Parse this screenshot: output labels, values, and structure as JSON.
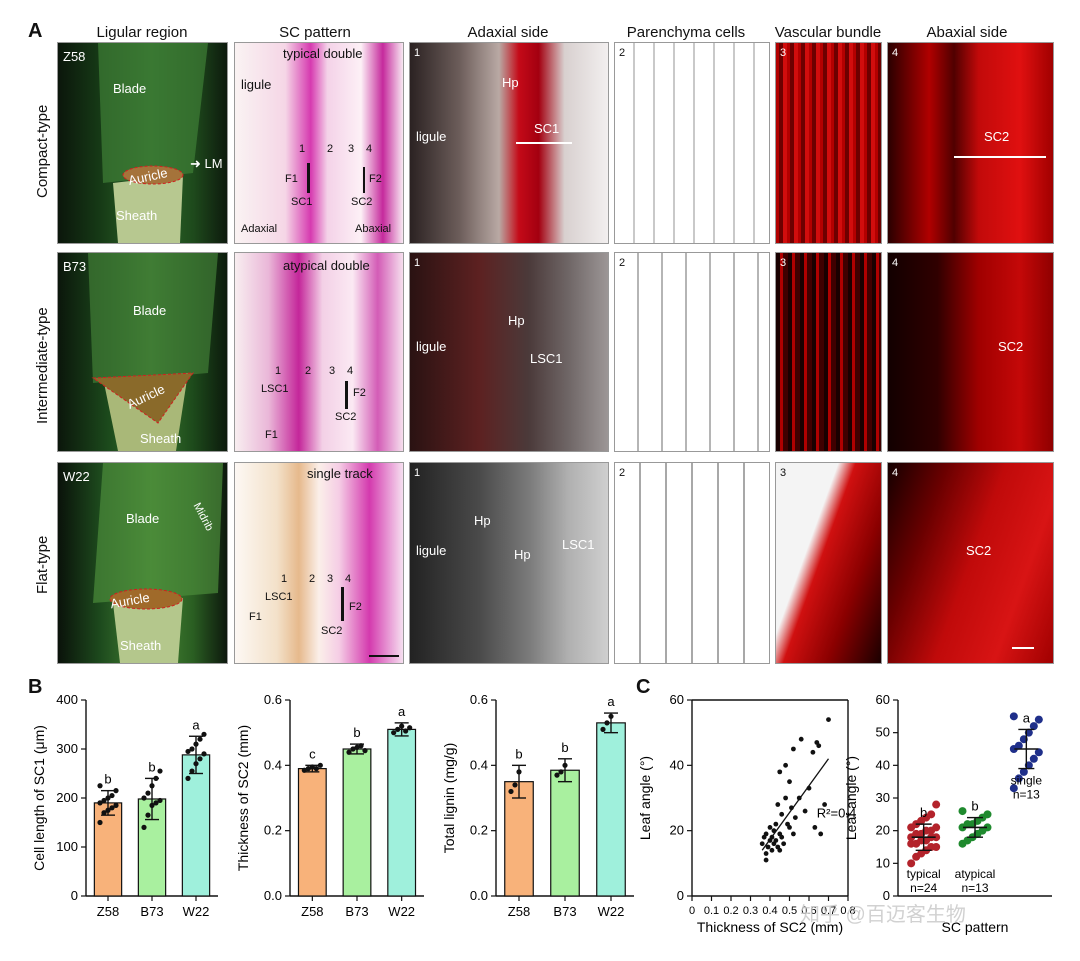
{
  "panels": {
    "A": "A",
    "B": "B",
    "C": "C"
  },
  "columns": [
    "Ligular region",
    "SC pattern",
    "Adaxial side",
    "Parenchyma cells",
    "Vascular bundle",
    "Abaxial side"
  ],
  "rows": [
    "Compact-type",
    "Intermediate-type",
    "Flat-type"
  ],
  "row1": {
    "line": "Z58",
    "blade": "Blade",
    "auricle": "Auricle",
    "lm": "LM",
    "sheath": "Sheath",
    "pattern": "typical double",
    "ligule": "ligule",
    "n1": "1",
    "n2": "2",
    "n3": "3",
    "n4": "4",
    "f1": "F1",
    "f2": "F2",
    "sc1": "SC1",
    "sc2": "SC2",
    "adaxial": "Adaxial",
    "abaxial": "Abaxial",
    "ad_hp": "Hp",
    "ad_ligule": "ligule",
    "ad_sc1": "SC1",
    "ad_n": "1",
    "par_n": "2",
    "vb_n": "3",
    "ab_n": "4",
    "ab_sc2": "SC2"
  },
  "row2": {
    "line": "B73",
    "blade": "Blade",
    "auricle": "Auricle",
    "sheath": "Sheath",
    "pattern": "atypical double",
    "n1": "1",
    "n2": "2",
    "n3": "3",
    "n4": "4",
    "lsc1": "LSC1",
    "f1": "F1",
    "f2": "F2",
    "sc2": "SC2",
    "ad_hp": "Hp",
    "ad_ligule": "ligule",
    "ad_lsc1": "LSC1",
    "ad_n": "1",
    "par_n": "2",
    "vb_n": "3",
    "ab_n": "4",
    "ab_sc2": "SC2"
  },
  "row3": {
    "line": "W22",
    "blade": "Blade",
    "midrib": "Midrib",
    "auricle": "Auricle",
    "sheath": "Sheath",
    "pattern": "single track",
    "n1": "1",
    "n2": "2",
    "n3": "3",
    "n4": "4",
    "lsc1": "LSC1",
    "f1": "F1",
    "f2": "F2",
    "sc2": "SC2",
    "ad_hp1": "Hp",
    "ad_hp2": "Hp",
    "ad_ligule": "ligule",
    "ad_lsc1": "LSC1",
    "ad_n": "1",
    "par_n": "2",
    "vb_n": "3",
    "ab_n": "4",
    "ab_sc2": "SC2"
  },
  "watermark": "知乎 @百迈客生物",
  "chart_data": [
    {
      "type": "bar",
      "title": "",
      "categories": [
        "Z58",
        "B73",
        "W22"
      ],
      "values": [
        190,
        198,
        288
      ],
      "errors": [
        25,
        42,
        38
      ],
      "letters": [
        "b",
        "b",
        "a"
      ],
      "points": [
        [
          150,
          170,
          175,
          180,
          185,
          190,
          195,
          200,
          205,
          215,
          225
        ],
        [
          140,
          165,
          185,
          190,
          195,
          200,
          210,
          225,
          240,
          255
        ],
        [
          240,
          255,
          270,
          280,
          290,
          295,
          300,
          310,
          320,
          330
        ]
      ],
      "ylabel": "Cell length of SC1 (μm)",
      "ylim": [
        0,
        400
      ],
      "yticks": [
        0,
        100,
        200,
        300,
        400
      ],
      "colors": [
        "#f8b27a",
        "#a9f09f",
        "#9ff0dc"
      ]
    },
    {
      "type": "bar",
      "title": "",
      "categories": [
        "Z58",
        "B73",
        "W22"
      ],
      "values": [
        0.39,
        0.45,
        0.51
      ],
      "errors": [
        0.01,
        0.015,
        0.02
      ],
      "letters": [
        "c",
        "b",
        "a"
      ],
      "points": [
        [
          0.385,
          0.39,
          0.395,
          0.39,
          0.4
        ],
        [
          0.44,
          0.45,
          0.455,
          0.46,
          0.445
        ],
        [
          0.5,
          0.51,
          0.52,
          0.505,
          0.515
        ]
      ],
      "ylabel": "Thickness of SC2 (mm)",
      "ylim": [
        0,
        0.6
      ],
      "yticks": [
        0.0,
        0.2,
        0.4,
        0.6
      ],
      "colors": [
        "#f8b27a",
        "#a9f09f",
        "#9ff0dc"
      ]
    },
    {
      "type": "bar",
      "title": "",
      "categories": [
        "Z58",
        "B73",
        "W22"
      ],
      "values": [
        0.35,
        0.385,
        0.53
      ],
      "errors": [
        0.05,
        0.035,
        0.03
      ],
      "letters": [
        "b",
        "b",
        "a"
      ],
      "points": [
        [
          0.32,
          0.34,
          0.38
        ],
        [
          0.37,
          0.38,
          0.4
        ],
        [
          0.51,
          0.53,
          0.55
        ]
      ],
      "ylabel": "Total lignin (mg/g)",
      "ylim": [
        0,
        0.6
      ],
      "yticks": [
        0.0,
        0.2,
        0.4,
        0.6
      ],
      "colors": [
        "#f8b27a",
        "#a9f09f",
        "#9ff0dc"
      ]
    },
    {
      "type": "scatter",
      "title": "",
      "x": [
        0.36,
        0.37,
        0.38,
        0.38,
        0.39,
        0.4,
        0.4,
        0.41,
        0.41,
        0.42,
        0.42,
        0.43,
        0.43,
        0.44,
        0.44,
        0.45,
        0.45,
        0.46,
        0.46,
        0.47,
        0.48,
        0.48,
        0.49,
        0.5,
        0.5,
        0.51,
        0.52,
        0.53,
        0.55,
        0.56,
        0.58,
        0.6,
        0.62,
        0.63,
        0.64,
        0.65,
        0.66,
        0.68,
        0.7,
        0.38,
        0.45,
        0.52
      ],
      "y": [
        16,
        18,
        13,
        19,
        15,
        17,
        21,
        14,
        18,
        16,
        20,
        17,
        22,
        15,
        28,
        19,
        38,
        18,
        25,
        16,
        30,
        40,
        22,
        21,
        35,
        27,
        19,
        24,
        30,
        48,
        26,
        33,
        44,
        21,
        47,
        46,
        19,
        28,
        54,
        11,
        14,
        45
      ],
      "fit": {
        "x": [
          0.36,
          0.7
        ],
        "y": [
          14,
          42
        ]
      },
      "annotation": "R²=0.4",
      "xlabel": "Thickness of SC2 (mm)",
      "ylabel": "Leaf angle (°)",
      "xlim": [
        0,
        0.8
      ],
      "ylim": [
        0,
        60
      ],
      "xticks": [
        0,
        0.1,
        0.2,
        0.3,
        0.4,
        0.5,
        0.6,
        0.7,
        0.8
      ],
      "yticks": [
        0,
        20,
        40,
        60
      ]
    },
    {
      "type": "scatter",
      "title": "",
      "categories": [
        "typical",
        "atypical",
        "single"
      ],
      "counts": [
        "n=24",
        "n=13",
        "n=13"
      ],
      "letters": [
        "b",
        "b",
        "a"
      ],
      "means": [
        18,
        21,
        45
      ],
      "errors": [
        4,
        3,
        6
      ],
      "points": [
        [
          10,
          12,
          13,
          14,
          15,
          15,
          16,
          16,
          17,
          17,
          18,
          18,
          18,
          19,
          19,
          20,
          20,
          21,
          21,
          22,
          23,
          24,
          25,
          28
        ],
        [
          16,
          17,
          18,
          19,
          20,
          21,
          21,
          22,
          22,
          23,
          24,
          25,
          26
        ],
        [
          33,
          36,
          38,
          40,
          42,
          44,
          45,
          46,
          48,
          50,
          52,
          54,
          55
        ]
      ],
      "colors": [
        "#b3232b",
        "#1f8a2e",
        "#1f2f8a"
      ],
      "xlabel": "SC pattern",
      "ylabel": "Leaf angle (°)",
      "ylim": [
        0,
        60
      ],
      "yticks": [
        0,
        10,
        20,
        30,
        40,
        50,
        60
      ]
    }
  ]
}
